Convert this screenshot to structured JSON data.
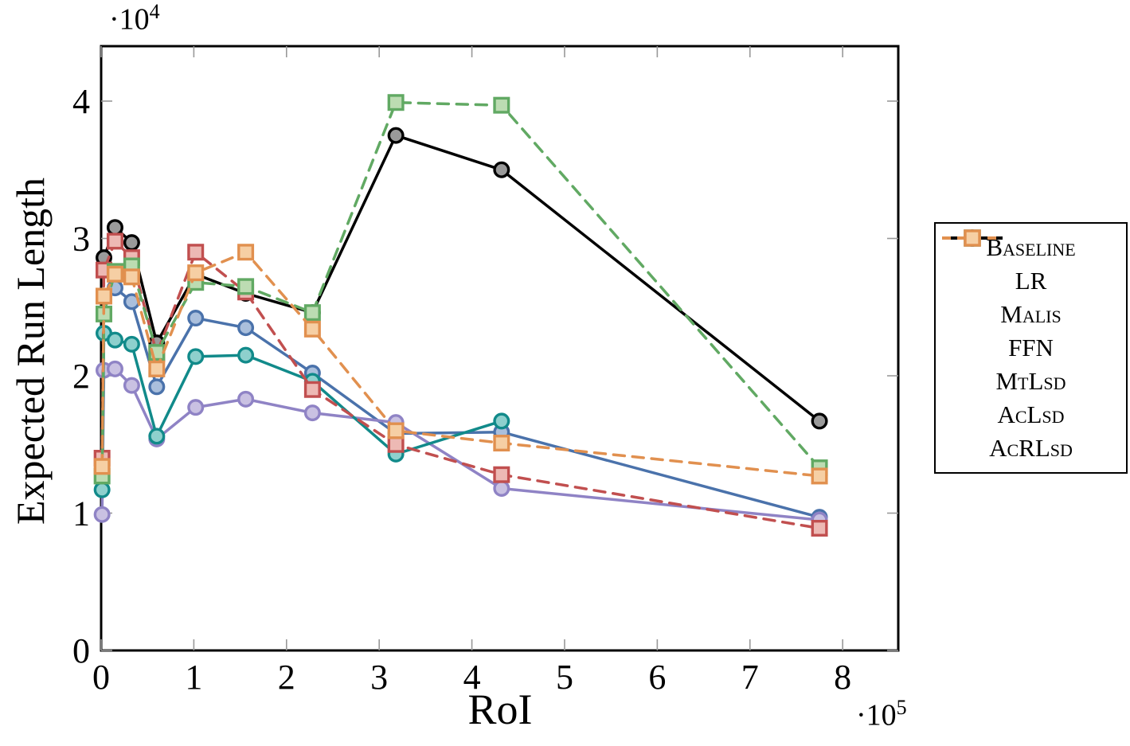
{
  "chart_data": {
    "type": "line",
    "title": "",
    "xlabel": "RoI",
    "ylabel": "Expected Run Length",
    "x_offset": {
      "dot": "·",
      "base": "10",
      "exp": "5"
    },
    "y_offset": {
      "dot": "·",
      "base": "10",
      "exp": "4"
    },
    "xlim": [
      0,
      860000
    ],
    "ylim": [
      0,
      44000
    ],
    "grid": "off",
    "legend_position": "outside-right",
    "axis_color": "#000000",
    "tick_color": "#999999",
    "x_ticks": {
      "values": [
        0,
        100000,
        200000,
        300000,
        400000,
        500000,
        600000,
        700000,
        800000
      ],
      "labels": [
        "0",
        "1",
        "2",
        "3",
        "4",
        "5",
        "6",
        "7",
        "8"
      ]
    },
    "y_ticks": {
      "values": [
        0,
        10000,
        20000,
        30000,
        40000
      ],
      "labels": [
        "0",
        "1",
        "2",
        "3",
        "4"
      ]
    },
    "series": [
      {
        "name": "baseline",
        "label": "Baseline",
        "line_style": "solid",
        "marker": "circle",
        "color": "#4a72ab",
        "marker_fill": "#aabfdc",
        "x": [
          15000,
          33000,
          60000,
          102000,
          156000,
          228000,
          318000,
          432000,
          775000
        ],
        "y": [
          26400,
          25400,
          19200,
          24200,
          23500,
          20200,
          15800,
          15900,
          9700
        ]
      },
      {
        "name": "lr",
        "label": "LR",
        "line_style": "solid",
        "marker": "circle",
        "color": "#8f83c5",
        "marker_fill": "#c9c1e2",
        "x": [
          1000,
          3000,
          15000,
          33000,
          60000,
          102000,
          156000,
          228000,
          318000,
          432000,
          775000
        ],
        "y": [
          9900,
          20400,
          20500,
          19300,
          15400,
          17700,
          18300,
          17300,
          16600,
          11800,
          9500
        ]
      },
      {
        "name": "malis",
        "label": "Malis",
        "line_style": "solid",
        "marker": "circle",
        "color": "#118a8a",
        "marker_fill": "#8ed0cd",
        "x": [
          1000,
          3000,
          15000,
          33000,
          60000,
          102000,
          156000,
          228000,
          318000,
          432000
        ],
        "y": [
          11700,
          23100,
          22600,
          22300,
          15600,
          21400,
          21500,
          19600,
          14300,
          16700
        ]
      },
      {
        "name": "ffn",
        "label": "FFN",
        "line_style": "solid",
        "marker": "circle",
        "color": "#000000",
        "marker_fill": "#9a9a9a",
        "x": [
          3000,
          15000,
          33000,
          60000,
          102000,
          156000,
          228000,
          318000,
          432000,
          775000
        ],
        "y": [
          28600,
          30800,
          29700,
          22400,
          27400,
          26000,
          24600,
          37500,
          35000,
          16700
        ]
      },
      {
        "name": "mtlsd",
        "label": "MtLsd",
        "line_style": "dashed",
        "marker": "square",
        "color": "#c14f4f",
        "marker_fill": "#edb9b4",
        "x": [
          1000,
          3000,
          15000,
          33000,
          60000,
          102000,
          156000,
          228000,
          318000,
          432000,
          775000
        ],
        "y": [
          14000,
          27700,
          29800,
          28600,
          21600,
          29000,
          26100,
          19000,
          15000,
          12800,
          8900
        ]
      },
      {
        "name": "aclsd",
        "label": "AcLsd",
        "line_style": "dashed",
        "marker": "square",
        "color": "#61a963",
        "marker_fill": "#bcdcb2",
        "x": [
          1000,
          3000,
          15000,
          33000,
          60000,
          102000,
          156000,
          228000,
          318000,
          432000,
          775000
        ],
        "y": [
          12700,
          24500,
          27600,
          28000,
          21700,
          26800,
          26500,
          24600,
          39900,
          39700,
          13300
        ]
      },
      {
        "name": "acrlsd",
        "label": "AcRLsd",
        "line_style": "dashed",
        "marker": "square",
        "color": "#e1904f",
        "marker_fill": "#f6cfa4",
        "x": [
          1000,
          3000,
          15000,
          33000,
          60000,
          102000,
          156000,
          228000,
          318000,
          432000,
          775000
        ],
        "y": [
          13400,
          25800,
          27400,
          27200,
          20500,
          27500,
          29000,
          23400,
          16000,
          15100,
          12700
        ]
      }
    ]
  }
}
